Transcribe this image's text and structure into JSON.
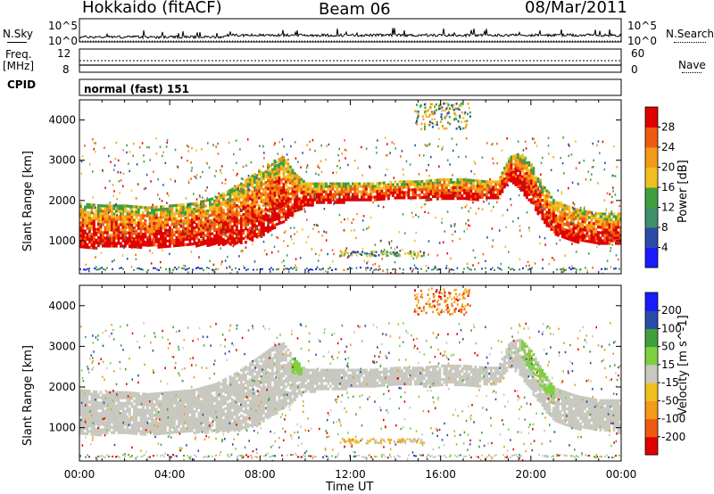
{
  "header": {
    "radar": "Hokkaido (fitACF)",
    "beam": "Beam 06",
    "date": "08/Mar/2011"
  },
  "top_panels": {
    "nsky_label": "N.Sky",
    "nsearch_label": "N.Search",
    "freq_label_1": "Freq.",
    "freq_label_2": "[MHz]",
    "nave_label": "Nave",
    "cpid_label": "CPID",
    "cpid_value": "normal (fast) 151",
    "noise_ticks_left": [
      "10^5",
      "10^0"
    ],
    "noise_ticks_right": [
      "10^5",
      "10^0"
    ],
    "freq_ticks": [
      "12",
      "8"
    ],
    "nave_ticks": [
      "60",
      "0"
    ]
  },
  "colors": {
    "power_scale": [
      "#1a1aff",
      "#2a4ba8",
      "#3f8f6b",
      "#3f9f3f",
      "#f0c020",
      "#f39a1a",
      "#f05a10",
      "#e00000"
    ],
    "velocity_scale": [
      "#e00000",
      "#f05a10",
      "#f39a1a",
      "#f0c020",
      "#c8c8c0",
      "#7fd040",
      "#3f9f3f",
      "#2a4ba8",
      "#1a1aff"
    ],
    "ground_scatter": "#c8c8c0"
  },
  "chart_data": [
    {
      "type": "heatmap",
      "name_printed": "",
      "xlabel": "Time UT",
      "ylabel": "Slant Range [km]",
      "colorbar_label": "Power [dB]",
      "colorbar_ticks": [
        "28",
        "24",
        "20",
        "16",
        "12",
        "8",
        "4"
      ],
      "colorbar_range": [
        0,
        32
      ],
      "x_ticks": [
        "00:00",
        "04:00",
        "08:00",
        "12:00",
        "16:00",
        "20:00",
        "00:00"
      ],
      "y_ticks": [
        "1000",
        "2000",
        "3000",
        "4000"
      ],
      "xlim_hours": [
        0,
        24
      ],
      "ylim_km": [
        180,
        4500
      ],
      "main_band": {
        "time_h": [
          0,
          1,
          2,
          3,
          4,
          5,
          6,
          7,
          8,
          8.5,
          9,
          9.5,
          10,
          11,
          12,
          13,
          14,
          15,
          16,
          17,
          18,
          18.5,
          19,
          19.5,
          20,
          20.5,
          21,
          22,
          23,
          24
        ],
        "lower_km": [
          850,
          850,
          860,
          870,
          880,
          900,
          920,
          950,
          1100,
          1300,
          1500,
          1700,
          1900,
          1950,
          2000,
          2000,
          2050,
          2050,
          2050,
          2050,
          2050,
          2100,
          2500,
          2300,
          1900,
          1500,
          1200,
          1000,
          950,
          900
        ],
        "upper_km": [
          1950,
          1900,
          1900,
          1850,
          1900,
          1950,
          2100,
          2400,
          2800,
          3000,
          3100,
          2700,
          2450,
          2450,
          2450,
          2450,
          2500,
          2500,
          2550,
          2550,
          2500,
          2500,
          3100,
          3200,
          2900,
          2400,
          2000,
          1800,
          1700,
          1700
        ]
      }
    },
    {
      "type": "heatmap",
      "name_printed": "",
      "xlabel": "Time UT",
      "ylabel": "Slant Range [km]",
      "colorbar_label": "Velocity [m s^-1]",
      "colorbar_ticks": [
        "200",
        "100",
        "50",
        "15",
        "-15",
        "-50",
        "-100",
        "-200"
      ],
      "colorbar_range": [
        -250,
        250
      ],
      "x_ticks": [
        "00:00",
        "04:00",
        "08:00",
        "12:00",
        "16:00",
        "20:00",
        "00:00"
      ],
      "y_ticks": [
        "1000",
        "2000",
        "3000",
        "4000"
      ],
      "xlim_hours": [
        0,
        24
      ],
      "ylim_km": [
        180,
        4500
      ]
    }
  ]
}
